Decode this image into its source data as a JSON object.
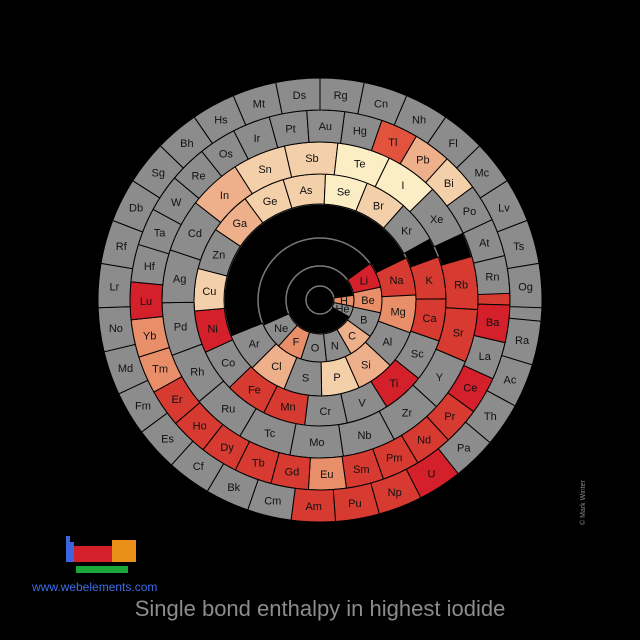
{
  "title": "Single bond enthalpy in highest iodide",
  "site_link": "www.webelements.com",
  "credit": "© Mark Winter",
  "colors": {
    "no_data": "#8c8c8c",
    "red_dark": "#d4202a",
    "red": "#d63a30",
    "red_med": "#e2533e",
    "salmon": "#e88f6a",
    "peach": "#eeb08b",
    "light_peach": "#f4d0aa",
    "cream": "#fbeec4"
  },
  "chart_data": {
    "type": "table",
    "layout": "spiral periodic table",
    "cells": [
      {
        "symbol": "H",
        "color": "salmon"
      },
      {
        "symbol": "He",
        "color": "no_data"
      },
      {
        "symbol": "Li",
        "color": "red_dark"
      },
      {
        "symbol": "Be",
        "color": "salmon"
      },
      {
        "symbol": "B",
        "color": "no_data"
      },
      {
        "symbol": "C",
        "color": "peach"
      },
      {
        "symbol": "N",
        "color": "no_data"
      },
      {
        "symbol": "O",
        "color": "no_data"
      },
      {
        "symbol": "F",
        "color": "salmon"
      },
      {
        "symbol": "Ne",
        "color": "no_data"
      },
      {
        "symbol": "Na",
        "color": "red"
      },
      {
        "symbol": "Mg",
        "color": "salmon"
      },
      {
        "symbol": "Al",
        "color": "no_data"
      },
      {
        "symbol": "Si",
        "color": "peach"
      },
      {
        "symbol": "P",
        "color": "light_peach"
      },
      {
        "symbol": "S",
        "color": "no_data"
      },
      {
        "symbol": "Cl",
        "color": "peach"
      },
      {
        "symbol": "Ar",
        "color": "no_data"
      },
      {
        "symbol": "K",
        "color": "red"
      },
      {
        "symbol": "Ca",
        "color": "red"
      },
      {
        "symbol": "Sc",
        "color": "no_data"
      },
      {
        "symbol": "Ti",
        "color": "red_dark"
      },
      {
        "symbol": "V",
        "color": "no_data"
      },
      {
        "symbol": "Cr",
        "color": "no_data"
      },
      {
        "symbol": "Mn",
        "color": "red"
      },
      {
        "symbol": "Fe",
        "color": "red"
      },
      {
        "symbol": "Co",
        "color": "no_data"
      },
      {
        "symbol": "Ni",
        "color": "red_dark"
      },
      {
        "symbol": "Cu",
        "color": "light_peach"
      },
      {
        "symbol": "Zn",
        "color": "no_data"
      },
      {
        "symbol": "Ga",
        "color": "peach"
      },
      {
        "symbol": "Ge",
        "color": "light_peach"
      },
      {
        "symbol": "As",
        "color": "light_peach"
      },
      {
        "symbol": "Se",
        "color": "cream"
      },
      {
        "symbol": "Br",
        "color": "light_peach"
      },
      {
        "symbol": "Kr",
        "color": "no_data"
      },
      {
        "symbol": "Rb",
        "color": "red"
      },
      {
        "symbol": "Sr",
        "color": "red"
      },
      {
        "symbol": "Y",
        "color": "no_data"
      },
      {
        "symbol": "Zr",
        "color": "no_data"
      },
      {
        "symbol": "Nb",
        "color": "no_data"
      },
      {
        "symbol": "Mo",
        "color": "no_data"
      },
      {
        "symbol": "Tc",
        "color": "no_data"
      },
      {
        "symbol": "Ru",
        "color": "no_data"
      },
      {
        "symbol": "Rh",
        "color": "no_data"
      },
      {
        "symbol": "Pd",
        "color": "no_data"
      },
      {
        "symbol": "Ag",
        "color": "no_data"
      },
      {
        "symbol": "Cd",
        "color": "no_data"
      },
      {
        "symbol": "In",
        "color": "peach"
      },
      {
        "symbol": "Sn",
        "color": "light_peach"
      },
      {
        "symbol": "Sb",
        "color": "light_peach"
      },
      {
        "symbol": "Te",
        "color": "cream"
      },
      {
        "symbol": "I",
        "color": "cream"
      },
      {
        "symbol": "Xe",
        "color": "no_data"
      },
      {
        "symbol": "Cs",
        "color": "red"
      },
      {
        "symbol": "Ba",
        "color": "red_dark"
      },
      {
        "symbol": "La",
        "color": "no_data"
      },
      {
        "symbol": "Ce",
        "color": "red_dark"
      },
      {
        "symbol": "Pr",
        "color": "red"
      },
      {
        "symbol": "Nd",
        "color": "red"
      },
      {
        "symbol": "Pm",
        "color": "red"
      },
      {
        "symbol": "Sm",
        "color": "red"
      },
      {
        "symbol": "Eu",
        "color": "salmon"
      },
      {
        "symbol": "Gd",
        "color": "red"
      },
      {
        "symbol": "Tb",
        "color": "red"
      },
      {
        "symbol": "Dy",
        "color": "red"
      },
      {
        "symbol": "Ho",
        "color": "red"
      },
      {
        "symbol": "Er",
        "color": "red"
      },
      {
        "symbol": "Tm",
        "color": "salmon"
      },
      {
        "symbol": "Yb",
        "color": "salmon"
      },
      {
        "symbol": "Lu",
        "color": "red_dark"
      },
      {
        "symbol": "Hf",
        "color": "no_data"
      },
      {
        "symbol": "Ta",
        "color": "no_data"
      },
      {
        "symbol": "W",
        "color": "no_data"
      },
      {
        "symbol": "Re",
        "color": "no_data"
      },
      {
        "symbol": "Os",
        "color": "no_data"
      },
      {
        "symbol": "Ir",
        "color": "no_data"
      },
      {
        "symbol": "Pt",
        "color": "no_data"
      },
      {
        "symbol": "Au",
        "color": "no_data"
      },
      {
        "symbol": "Hg",
        "color": "no_data"
      },
      {
        "symbol": "Tl",
        "color": "red_med"
      },
      {
        "symbol": "Pb",
        "color": "peach"
      },
      {
        "symbol": "Bi",
        "color": "light_peach"
      },
      {
        "symbol": "Po",
        "color": "no_data"
      },
      {
        "symbol": "At",
        "color": "no_data"
      },
      {
        "symbol": "Rn",
        "color": "no_data"
      },
      {
        "symbol": "Fr",
        "color": "no_data"
      },
      {
        "symbol": "Ra",
        "color": "no_data"
      },
      {
        "symbol": "Ac",
        "color": "no_data"
      },
      {
        "symbol": "Th",
        "color": "no_data"
      },
      {
        "symbol": "Pa",
        "color": "no_data"
      },
      {
        "symbol": "U",
        "color": "red_dark"
      },
      {
        "symbol": "Np",
        "color": "red"
      },
      {
        "symbol": "Pu",
        "color": "red"
      },
      {
        "symbol": "Am",
        "color": "red"
      },
      {
        "symbol": "Cm",
        "color": "no_data"
      },
      {
        "symbol": "Bk",
        "color": "no_data"
      },
      {
        "symbol": "Cf",
        "color": "no_data"
      },
      {
        "symbol": "Es",
        "color": "no_data"
      },
      {
        "symbol": "Fm",
        "color": "no_data"
      },
      {
        "symbol": "Md",
        "color": "no_data"
      },
      {
        "symbol": "No",
        "color": "no_data"
      },
      {
        "symbol": "Lr",
        "color": "no_data"
      },
      {
        "symbol": "Rf",
        "color": "no_data"
      },
      {
        "symbol": "Db",
        "color": "no_data"
      },
      {
        "symbol": "Sg",
        "color": "no_data"
      },
      {
        "symbol": "Bh",
        "color": "no_data"
      },
      {
        "symbol": "Hs",
        "color": "no_data"
      },
      {
        "symbol": "Mt",
        "color": "no_data"
      },
      {
        "symbol": "Ds",
        "color": "no_data"
      },
      {
        "symbol": "Rg",
        "color": "no_data"
      },
      {
        "symbol": "Cn",
        "color": "no_data"
      },
      {
        "symbol": "Nh",
        "color": "no_data"
      },
      {
        "symbol": "Fl",
        "color": "no_data"
      },
      {
        "symbol": "Mc",
        "color": "no_data"
      },
      {
        "symbol": "Lv",
        "color": "no_data"
      },
      {
        "symbol": "Ts",
        "color": "no_data"
      },
      {
        "symbol": "Og",
        "color": "no_data"
      }
    ]
  }
}
